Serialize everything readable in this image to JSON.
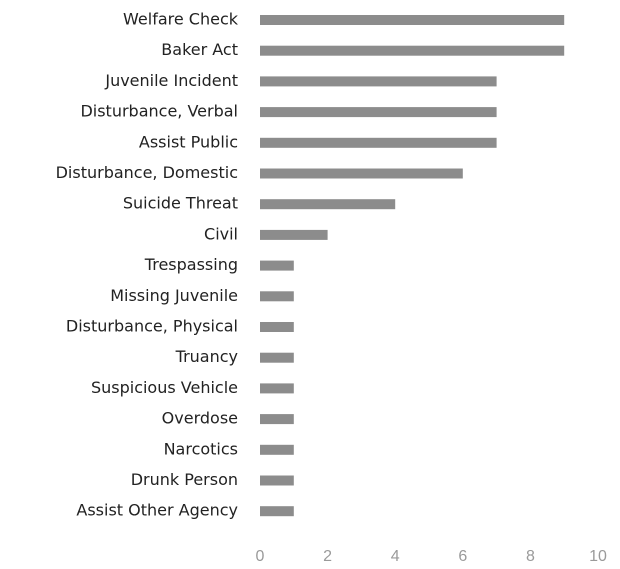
{
  "chart_data": {
    "type": "bar",
    "orientation": "horizontal",
    "categories": [
      "Welfare Check",
      "Baker Act",
      "Juvenile Incident",
      "Disturbance, Verbal",
      "Assist Public",
      "Disturbance, Domestic",
      "Suicide Threat",
      "Civil",
      "Trespassing",
      "Missing Juvenile",
      "Disturbance, Physical",
      "Truancy",
      "Suspicious Vehicle",
      "Overdose",
      "Narcotics",
      "Drunk Person",
      "Assist Other Agency"
    ],
    "values": [
      9,
      9,
      7,
      7,
      7,
      6,
      4,
      2,
      1,
      1,
      1,
      1,
      1,
      1,
      1,
      1,
      1
    ],
    "color": "#8c8c8c",
    "xlim": [
      0,
      10
    ],
    "xticks": [
      0,
      2,
      4,
      6,
      8,
      10
    ],
    "grid": false
  }
}
